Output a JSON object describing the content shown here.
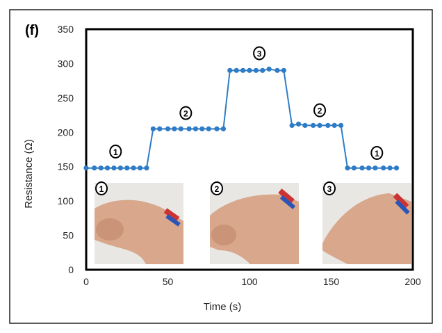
{
  "panel_label": "(f)",
  "chart_data": {
    "type": "line",
    "xlabel": "Time (s)",
    "ylabel": "Resistance (Ω)",
    "xlim": [
      0,
      200
    ],
    "ylim": [
      0,
      350
    ],
    "xticks": [
      "0",
      "50",
      "100",
      "150",
      "200"
    ],
    "yticks": [
      "0",
      "50",
      "100",
      "150",
      "200",
      "250",
      "300",
      "350"
    ],
    "grid": false,
    "series": [
      {
        "color": "#2e7cc6",
        "x": [
          0,
          5,
          9,
          13,
          17,
          21,
          25,
          29,
          33,
          37,
          41,
          45,
          50,
          54,
          58,
          63,
          67,
          71,
          75,
          80,
          84,
          88,
          92,
          96,
          100,
          104,
          108,
          112,
          117,
          121,
          126,
          130,
          134,
          139,
          143,
          148,
          152,
          156,
          160,
          164,
          169,
          173,
          177,
          182,
          186,
          190
        ],
        "y": [
          148,
          148,
          148,
          148,
          148,
          148,
          148,
          148,
          148,
          148,
          205,
          205,
          205,
          205,
          205,
          205,
          205,
          205,
          205,
          205,
          205,
          290,
          290,
          290,
          290,
          290,
          290,
          292,
          290,
          290,
          210,
          212,
          210,
          210,
          210,
          210,
          210,
          210,
          148,
          148,
          148,
          148,
          148,
          148,
          148,
          148
        ]
      }
    ],
    "annotations": [
      {
        "text": "1",
        "x": 18,
        "y": 172
      },
      {
        "text": "2",
        "x": 61,
        "y": 228
      },
      {
        "text": "3",
        "x": 106,
        "y": 315
      },
      {
        "text": "2",
        "x": 143,
        "y": 232
      },
      {
        "text": "1",
        "x": 178,
        "y": 170
      }
    ],
    "insets": [
      {
        "label": "1",
        "description": "wrist bent down with sensor attached"
      },
      {
        "label": "2",
        "description": "wrist straight with sensor attached"
      },
      {
        "label": "3",
        "description": "wrist bent up with sensor attached"
      }
    ]
  }
}
